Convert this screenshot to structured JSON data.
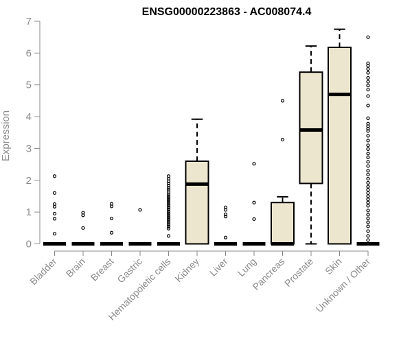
{
  "chart_data": {
    "type": "boxplot",
    "title": "ENSG00000223863 - AC008074.4",
    "ylabel": "Expression",
    "xlabel": "",
    "ylim": [
      0,
      7
    ],
    "yticks": [
      0,
      1,
      2,
      3,
      4,
      5,
      6,
      7
    ],
    "box_fill": "#ede6cf",
    "categories": [
      "Bladder",
      "Brain",
      "Breast",
      "Gastric",
      "Hematopoietic cells",
      "Kidney",
      "Liver",
      "Lung",
      "Pancreas",
      "Prostate",
      "Skin",
      "Unknown / Other"
    ],
    "boxes": [
      {
        "category": "Bladder",
        "q1": 0,
        "median": 0,
        "q3": 0,
        "whisker_low": 0,
        "whisker_high": 0,
        "outliers": [
          2.13,
          1.6,
          1.25,
          1.17,
          0.95,
          0.79,
          0.32
        ]
      },
      {
        "category": "Brain",
        "q1": 0,
        "median": 0,
        "q3": 0,
        "whisker_low": 0,
        "whisker_high": 0,
        "outliers": [
          0.98,
          0.9,
          0.5
        ]
      },
      {
        "category": "Breast",
        "q1": 0,
        "median": 0,
        "q3": 0,
        "whisker_low": 0,
        "whisker_high": 0,
        "outliers": [
          1.26,
          1.18,
          0.8,
          0.35
        ]
      },
      {
        "category": "Gastric",
        "q1": 0,
        "median": 0,
        "q3": 0,
        "whisker_low": 0,
        "whisker_high": 0,
        "outliers": [
          1.07
        ]
      },
      {
        "category": "Hematopoietic cells",
        "q1": 0,
        "median": 0,
        "q3": 0,
        "whisker_low": 0,
        "whisker_high": 0,
        "outliers": [
          2.13,
          2.05,
          1.97,
          1.9,
          1.83,
          1.76,
          1.7,
          1.63,
          1.56,
          1.5,
          1.44,
          1.38,
          1.32,
          1.26,
          1.2,
          1.14,
          1.08,
          1.02,
          0.96,
          0.9,
          0.84,
          0.78,
          0.72,
          0.66,
          0.6,
          0.54,
          0.48,
          0.25
        ]
      },
      {
        "category": "Kidney",
        "q1": 0,
        "median": 1.88,
        "q3": 2.6,
        "whisker_low": 0,
        "whisker_high": 3.92,
        "outliers": []
      },
      {
        "category": "Liver",
        "q1": 0,
        "median": 0,
        "q3": 0,
        "whisker_low": 0,
        "whisker_high": 0,
        "outliers": [
          1.15,
          1.07,
          0.93,
          0.86,
          0.2
        ]
      },
      {
        "category": "Lung",
        "q1": 0,
        "median": 0,
        "q3": 0,
        "whisker_low": 0,
        "whisker_high": 0,
        "outliers": [
          2.52,
          1.3,
          0.78
        ]
      },
      {
        "category": "Pancreas",
        "q1": 0,
        "median": 0,
        "q3": 1.3,
        "whisker_low": 0,
        "whisker_high": 1.48,
        "outliers": [
          4.5,
          3.28
        ]
      },
      {
        "category": "Prostate",
        "q1": 1.9,
        "median": 3.58,
        "q3": 5.4,
        "whisker_low": 0,
        "whisker_high": 6.22,
        "outliers": []
      },
      {
        "category": "Skin",
        "q1": 0,
        "median": 4.7,
        "q3": 6.18,
        "whisker_low": 0,
        "whisker_high": 6.75,
        "outliers": []
      },
      {
        "category": "Unknown / Other",
        "q1": 0,
        "median": 0,
        "q3": 0,
        "whisker_low": 0,
        "whisker_high": 0,
        "outliers": [
          6.5,
          5.68,
          5.6,
          5.5,
          5.38,
          5.22,
          5.1,
          4.98,
          4.85,
          4.65,
          4.35,
          3.95,
          3.78,
          3.7,
          3.62,
          3.55,
          3.4,
          3.25,
          3.1,
          2.98,
          2.84,
          2.72,
          2.58,
          2.45,
          2.3,
          2.18,
          2.05,
          1.92,
          1.8,
          1.7,
          1.6,
          1.5,
          1.4,
          1.3,
          1.2,
          1.05,
          0.92,
          0.8,
          0.68,
          0.55,
          0.4,
          0.25,
          0.12
        ]
      }
    ]
  }
}
